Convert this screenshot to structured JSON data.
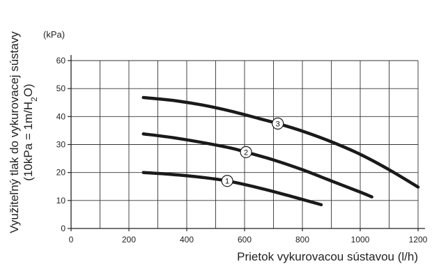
{
  "chart_data": {
    "type": "line",
    "xlabel": "Prietok vykurovacou sústavou (l/h)",
    "ylabel_line1": "Využiteľný tlak do vykurovacej sústavy",
    "ylabel_line2_prefix": "(10kPa = 1m/H",
    "ylabel_line2_sub": "2",
    "ylabel_line2_suffix": "O)",
    "yunit": "(kPa)",
    "xlim": [
      0,
      1200
    ],
    "ylim": [
      0,
      60
    ],
    "x_ticks": [
      0,
      200,
      400,
      600,
      800,
      1000,
      1200
    ],
    "y_ticks": [
      0,
      10,
      20,
      30,
      40,
      50,
      60
    ],
    "x_tick_labels": [
      "0",
      "200",
      "400",
      "600",
      "800",
      "1000",
      "1200"
    ],
    "y_tick_labels": [
      "0",
      "10",
      "20",
      "30",
      "40",
      "50",
      "60"
    ],
    "x_grid_step": 100,
    "y_grid_step": 10,
    "grid": true,
    "series": [
      {
        "name": "1",
        "label_at": [
          540,
          17
        ],
        "points": [
          [
            250,
            20
          ],
          [
            350,
            19.3
          ],
          [
            450,
            18.3
          ],
          [
            540,
            17
          ],
          [
            650,
            14.5
          ],
          [
            750,
            11.8
          ],
          [
            865,
            8.5
          ]
        ]
      },
      {
        "name": "2",
        "label_at": [
          605,
          27.3
        ],
        "points": [
          [
            250,
            33.8
          ],
          [
            350,
            32.5
          ],
          [
            450,
            30.8
          ],
          [
            550,
            28.8
          ],
          [
            605,
            27.3
          ],
          [
            700,
            24.5
          ],
          [
            800,
            21
          ],
          [
            900,
            17
          ],
          [
            1000,
            13
          ],
          [
            1040,
            11.3
          ]
        ]
      },
      {
        "name": "3",
        "label_at": [
          715,
          37.5
        ],
        "points": [
          [
            250,
            46.8
          ],
          [
            350,
            45.8
          ],
          [
            450,
            44.2
          ],
          [
            550,
            42
          ],
          [
            650,
            39.3
          ],
          [
            715,
            37.5
          ],
          [
            800,
            34.8
          ],
          [
            900,
            31
          ],
          [
            1000,
            26.5
          ],
          [
            1100,
            21
          ],
          [
            1200,
            14.8
          ]
        ]
      }
    ]
  }
}
